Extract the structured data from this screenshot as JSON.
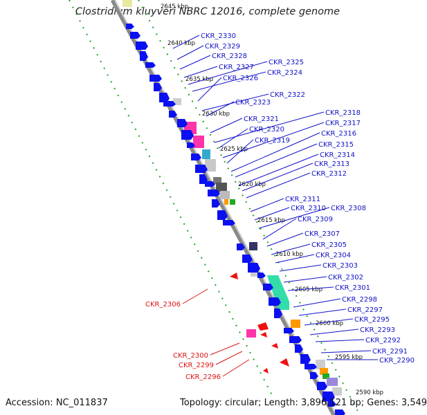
{
  "title": "Clostridium kluyveri NBRC 12016, complete genome",
  "footer": {
    "accession": "Accession: NC_011837",
    "details": "Topology: circular; Length: 3,896,121 bp; Genes: 3,549"
  },
  "colors": {
    "forward_label": "#1010c8",
    "reverse_label": "#dd1111",
    "cds": "#0a10f0"
  },
  "ticks": [
    "2645 kbp",
    "2640 kbp",
    "2635 kbp",
    "2630 kbp",
    "2625 kbp",
    "2620 kbp",
    "2615 kbp",
    "2610 kbp",
    "2605 kbp",
    "2600 kbp",
    "2595 kbp",
    "2590 kbp"
  ],
  "genes_forward": [
    "CKR_2330",
    "CKR_2329",
    "CKR_2328",
    "CKR_2327",
    "CKR_2325",
    "CKR_2324",
    "CKR_2326",
    "CKR_2322",
    "CKR_2323",
    "CKR_2321",
    "CKR_2318",
    "CKR_2320",
    "CKR_2317",
    "CKR_2319",
    "CKR_2316",
    "CKR_2315",
    "CKR_2314",
    "CKR_2313",
    "CKR_2312",
    "CKR_2311",
    "CKR_2310",
    "CKR_2308",
    "CKR_2309",
    "CKR_2307",
    "CKR_2305",
    "CKR_2304",
    "CKR_2303",
    "CKR_2302",
    "CKR_2301",
    "CKR_2298",
    "CKR_2297",
    "CKR_2295",
    "CKR_2293",
    "CKR_2292",
    "CKR_2291",
    "CKR_2290"
  ],
  "genes_reverse": [
    "CKR_2306",
    "CKR_2300",
    "CKR_2299",
    "CKR_2296"
  ]
}
